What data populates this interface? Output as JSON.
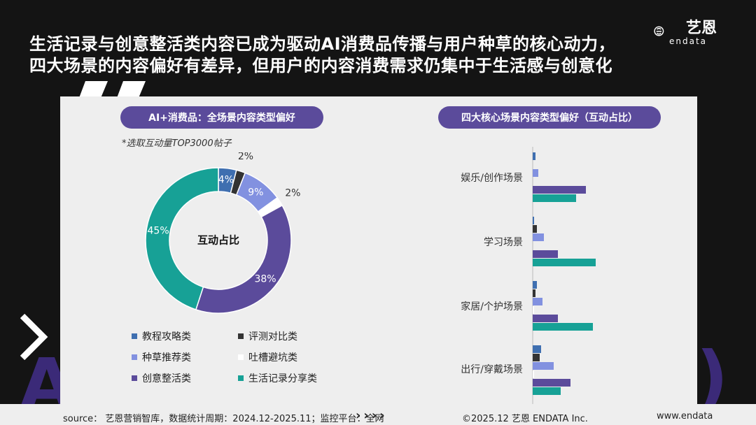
{
  "header": {
    "line1": "生活记录与创意整活类内容已成为驱动AI消费品传播与用户种草的核心动力，",
    "line2": "四大场景的内容偏好有差异，但用户的内容消费需求仍集中于生活感与创意化"
  },
  "brand": {
    "name_cn": "艺恩",
    "name_en": "endata"
  },
  "background": {
    "word_left": "AI",
    "word_right": "AI)"
  },
  "left_panel": {
    "title": "AI+消费品：全场景内容类型偏好",
    "note": "*选取互动量TOP3000帖子",
    "center_label": "互动占比"
  },
  "right_panel": {
    "title": "四大核心场景内容类型偏好（互动占比）"
  },
  "colors": {
    "教程攻略类": "#3f6fb0",
    "评测对比类": "#333333",
    "种草推荐类": "#8291e0",
    "吐槽避坑类": "#ffffff",
    "创意整活类": "#5b4b9b",
    "生活记录分享类": "#17a196"
  },
  "chart_data": [
    {
      "type": "pie",
      "title": "互动占比",
      "categories": [
        "教程攻略类",
        "评测对比类",
        "种草推荐类",
        "吐槽避坑类",
        "创意整活类",
        "生活记录分享类"
      ],
      "values": [
        4,
        2,
        9,
        2,
        38,
        45
      ],
      "labels": [
        "4%",
        "2%",
        "9%",
        "2%",
        "38%",
        "45%"
      ],
      "legend": [
        "教程攻略类",
        "评测对比类",
        "种草推荐类",
        "吐槽避坑类",
        "创意整活类",
        "生活记录分享类"
      ]
    },
    {
      "type": "bar",
      "title": "四大核心场景内容类型偏好（互动占比）",
      "categories": [
        "娱乐/创作场景",
        "学习场景",
        "家居/个护场景",
        "出行/穿戴场景"
      ],
      "series": [
        {
          "name": "教程攻略类",
          "values": [
            2,
            1,
            3,
            6
          ]
        },
        {
          "name": "评测对比类",
          "values": [
            0,
            3,
            2,
            5
          ]
        },
        {
          "name": "种草推荐类",
          "values": [
            4,
            8,
            7,
            15
          ]
        },
        {
          "name": "吐槽避坑类",
          "values": [
            0,
            0,
            1,
            1
          ]
        },
        {
          "name": "创意整活类",
          "values": [
            38,
            18,
            18,
            27
          ]
        },
        {
          "name": "生活记录分享类",
          "values": [
            31,
            45,
            43,
            20
          ]
        }
      ]
    }
  ],
  "footer": {
    "source": "source： 艺恩营销智库，数据统计周期：2024.12-2025.11；监控平台：全网",
    "arrows": "››››",
    "copyright": "©2025.12  艺恩 ENDATA Inc.",
    "url": "www.endata"
  }
}
